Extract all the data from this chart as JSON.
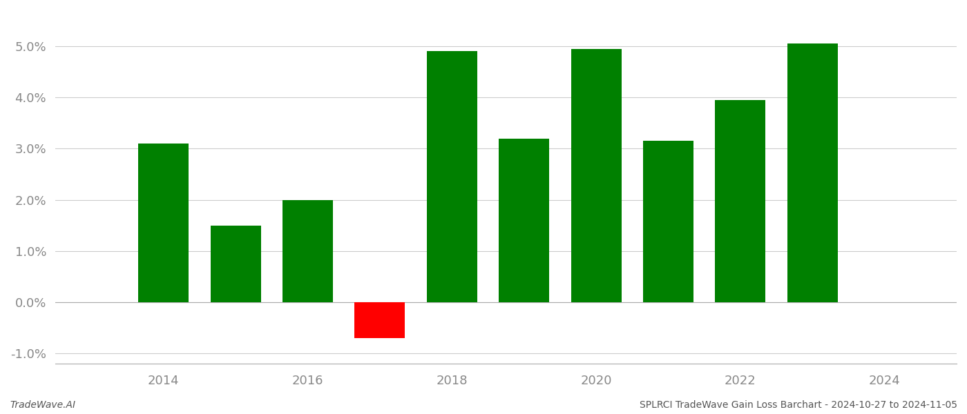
{
  "years": [
    2014,
    2015,
    2016,
    2017,
    2018,
    2019,
    2020,
    2021,
    2022,
    2023
  ],
  "values": [
    0.031,
    0.015,
    0.02,
    -0.007,
    0.049,
    0.032,
    0.0495,
    0.0315,
    0.0395,
    0.0505
  ],
  "colors": [
    "#008000",
    "#008000",
    "#008000",
    "#ff0000",
    "#008000",
    "#008000",
    "#008000",
    "#008000",
    "#008000",
    "#008000"
  ],
  "ylim": [
    -0.012,
    0.057
  ],
  "yticks": [
    -0.01,
    0.0,
    0.01,
    0.02,
    0.03,
    0.04,
    0.05
  ],
  "xlim": [
    2012.5,
    2025.0
  ],
  "xticks": [
    2014,
    2016,
    2018,
    2020,
    2022,
    2024
  ],
  "xlabel": "",
  "ylabel": "",
  "footer_left": "TradeWave.AI",
  "footer_right": "SPLRCI TradeWave Gain Loss Barchart - 2024-10-27 to 2024-11-05",
  "bar_width": 0.7,
  "background_color": "#ffffff",
  "grid_color": "#cccccc",
  "tick_fontsize": 13,
  "footer_fontsize": 10,
  "tick_color": "#888888"
}
